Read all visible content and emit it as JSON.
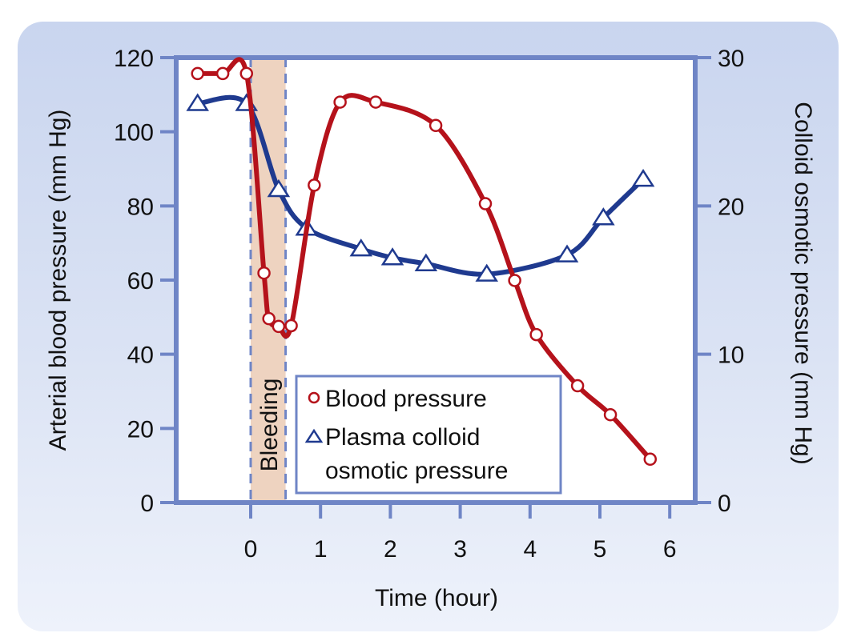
{
  "chart_data": {
    "type": "line",
    "title": "",
    "xlabel": "Time (hour)",
    "ylabel": "Arterial blood pressure (mm Hg)",
    "ylabel_right": "Colloid osmotic pressure (mm Hg)",
    "xlim": [
      -1.07,
      6.4
    ],
    "ylim": [
      0,
      120
    ],
    "ylim_right": [
      0,
      30
    ],
    "x_ticks": [
      0,
      1,
      2,
      3,
      4,
      5,
      6
    ],
    "x_tick_labels": [
      "0",
      "1",
      "2",
      "3",
      "4",
      "5",
      "6"
    ],
    "y_ticks": [
      0,
      20,
      40,
      60,
      80,
      100,
      120
    ],
    "y_tick_labels": [
      "0",
      "20",
      "40",
      "60",
      "80",
      "100",
      "120"
    ],
    "y_right_ticks": [
      0,
      10,
      20,
      30
    ],
    "y_right_tick_labels": [
      "0",
      "10",
      "20",
      "30"
    ],
    "grid": false,
    "shaded_region": {
      "label": "Bleeding",
      "x_start": 0,
      "x_end": 0.5,
      "color": "#eed3c0",
      "border_color": "#6f85c6"
    },
    "legend_position": "bottom-center",
    "series": [
      {
        "name": "Blood pressure",
        "axis": "left",
        "marker": "circle",
        "color": "#b5121b",
        "x": [
          -0.76,
          -0.4,
          -0.06,
          0.19,
          0.26,
          0.4,
          0.58,
          0.91,
          1.28,
          1.79,
          2.65,
          3.36,
          3.78,
          4.09,
          4.68,
          5.15,
          5.72
        ],
        "values": [
          115.7,
          115.7,
          115.7,
          61.9,
          49.6,
          47.5,
          47.7,
          85.6,
          108,
          108,
          101.7,
          80.6,
          59.9,
          45.3,
          31.5,
          23.7,
          11.7
        ]
      },
      {
        "name": "Plasma colloid osmotic pressure",
        "axis": "right",
        "marker": "triangle",
        "color": "#1f3a8f",
        "x": [
          -0.76,
          -0.06,
          0.4,
          0.8,
          1.58,
          2.03,
          2.51,
          3.38,
          4.53,
          5.05,
          5.62
        ],
        "values": [
          26.9,
          26.9,
          21.1,
          18.5,
          17.1,
          16.5,
          16.1,
          15.4,
          16.7,
          19.2,
          21.8
        ]
      }
    ],
    "legend": [
      {
        "label_lines": [
          "Blood pressure"
        ],
        "marker": "circle"
      },
      {
        "label_lines": [
          "Plasma colloid",
          "osmotic pressure"
        ],
        "marker": "triangle"
      }
    ]
  }
}
